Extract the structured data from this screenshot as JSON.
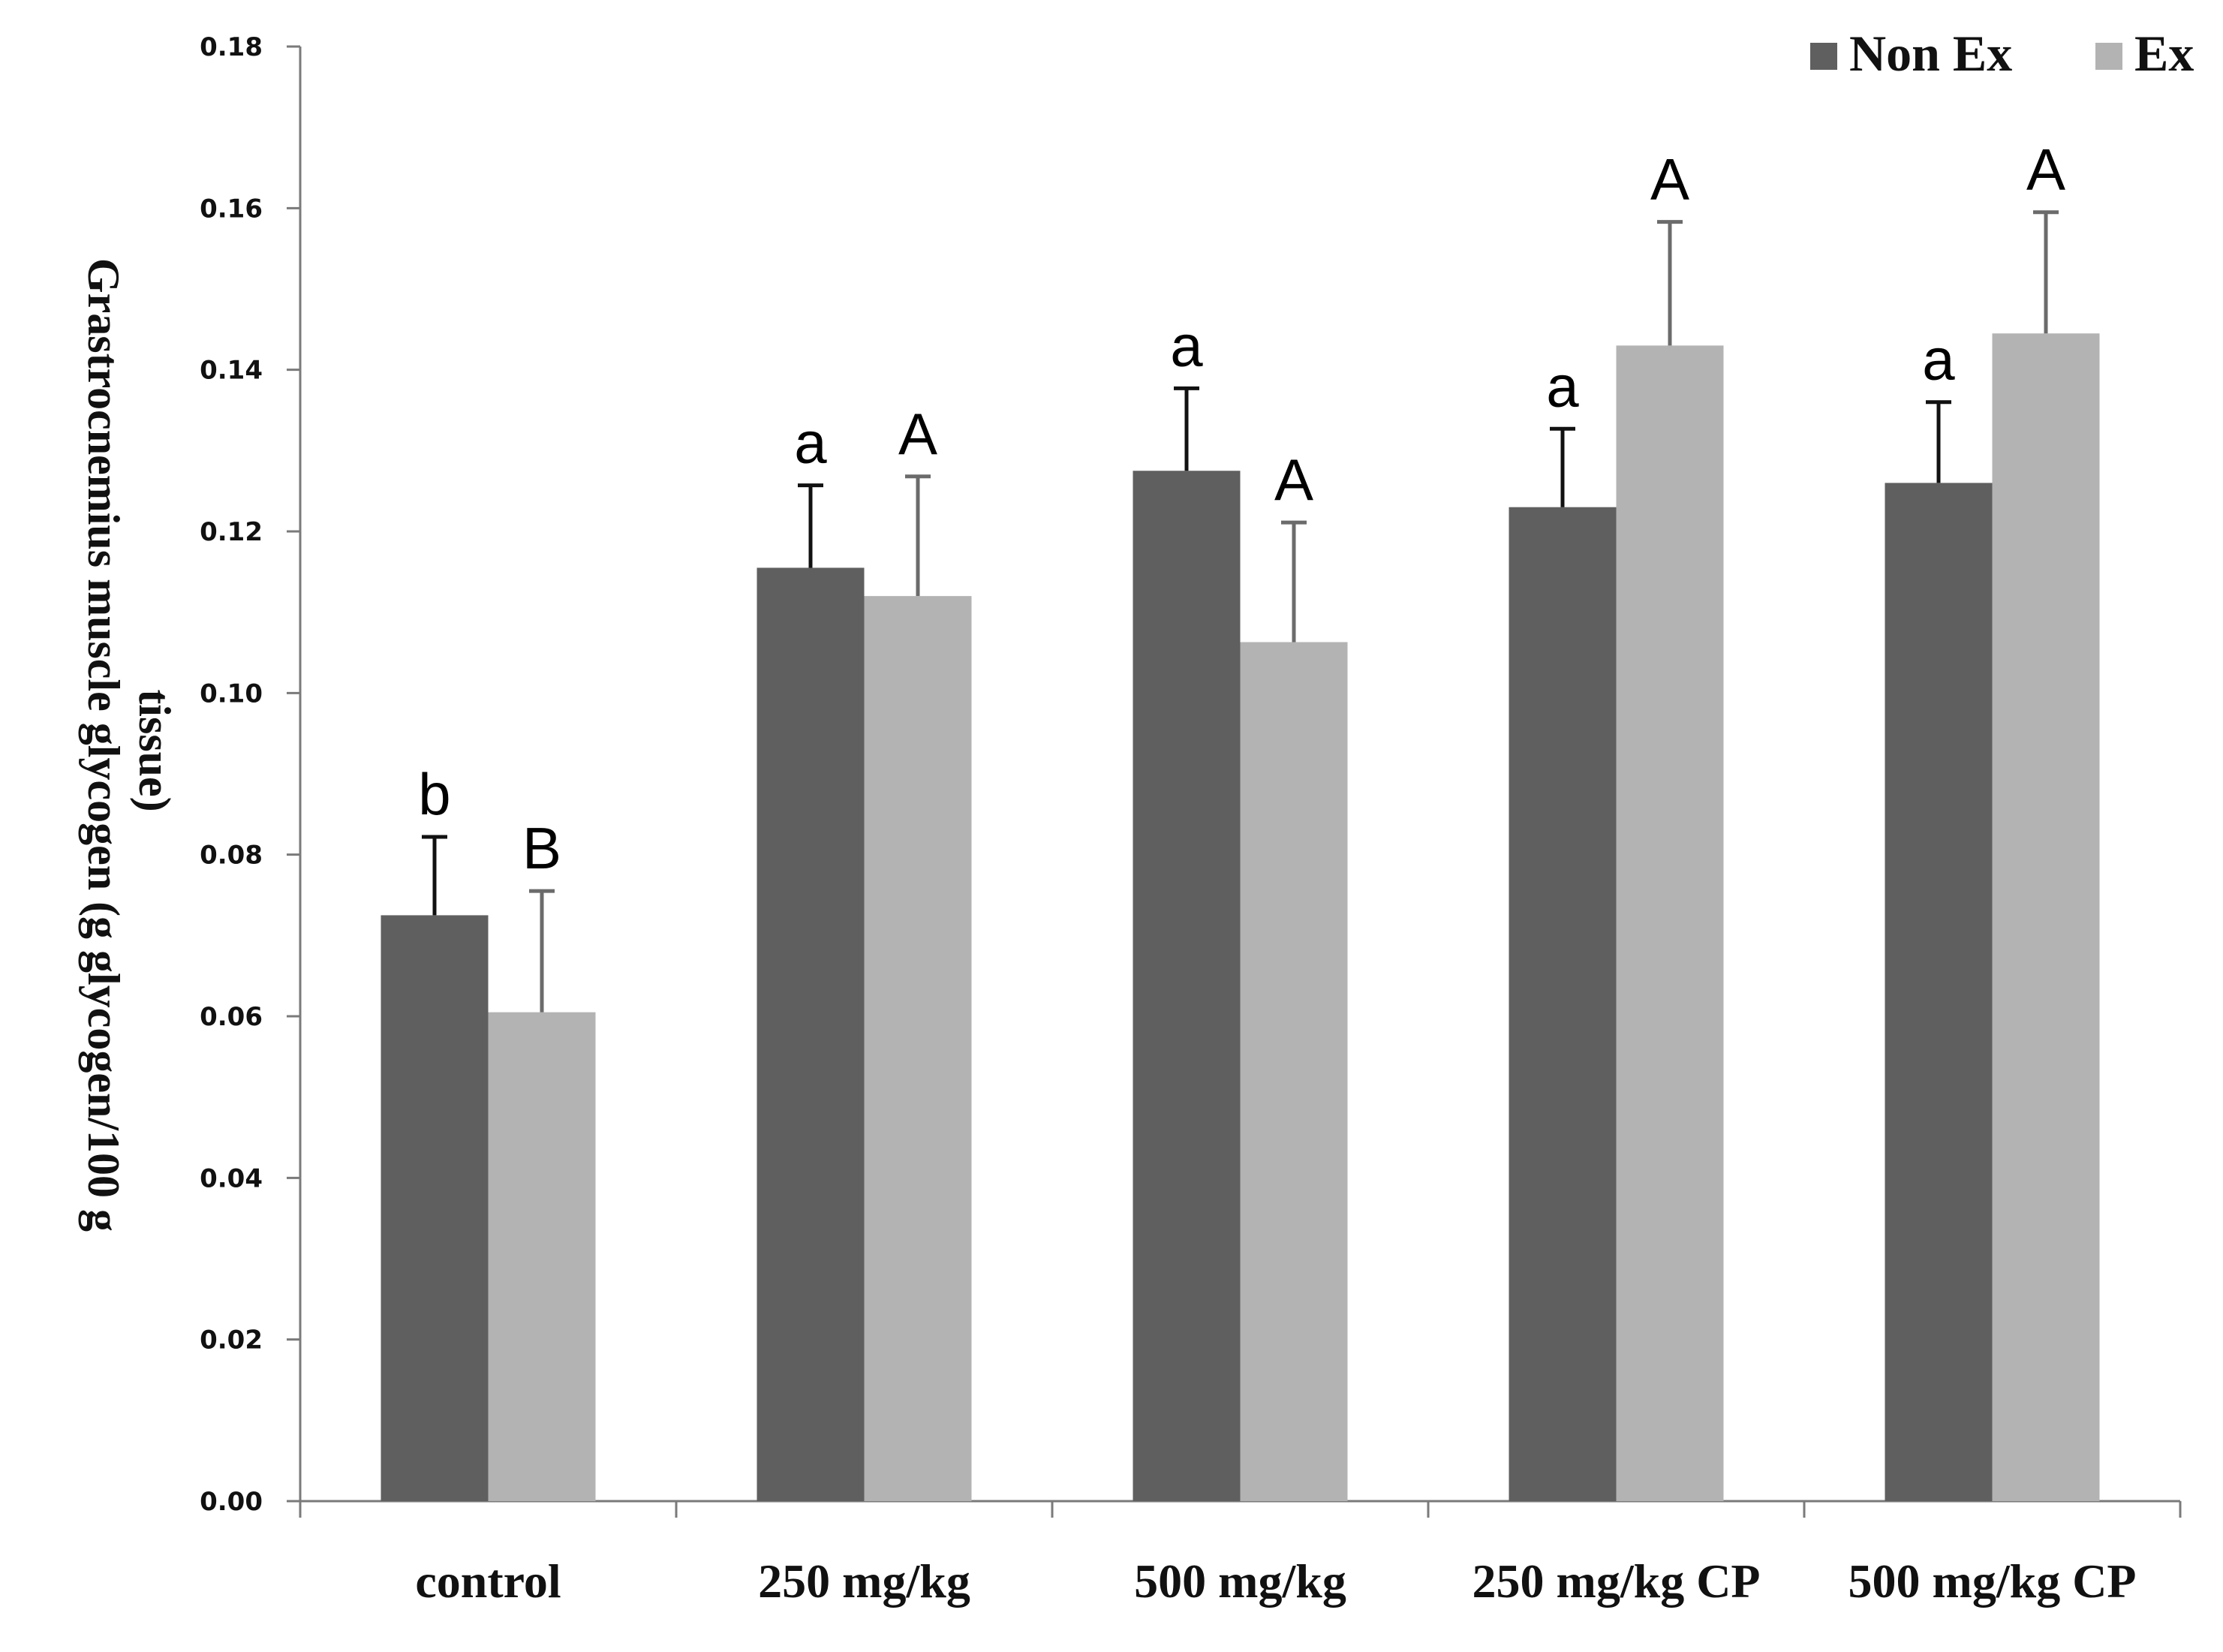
{
  "chart_data": {
    "type": "bar",
    "title": "",
    "xlabel": "",
    "ylabel_lines": [
      "Grastrocnemius muscle glycogen (g glycogen/100 g",
      "tissue)"
    ],
    "ylim": [
      0,
      0.18
    ],
    "yticks": [
      "0.00",
      "0.02",
      "0.04",
      "0.06",
      "0.08",
      "0.10",
      "0.12",
      "0.14",
      "0.16",
      "0.18"
    ],
    "ytick_values": [
      0,
      0.02,
      0.04,
      0.06,
      0.08,
      0.1,
      0.12,
      0.14,
      0.16,
      0.18
    ],
    "categories": [
      "control",
      "250 mg/kg",
      "500 mg/kg",
      "250 mg/kg CP",
      "500 mg/kg CP"
    ],
    "legend_position": "top-right",
    "series": [
      {
        "name": "Non Ex",
        "color": "#5f5f5f",
        "error_color": "#111111",
        "values": [
          0.0725,
          0.1155,
          0.1275,
          0.123,
          0.126
        ],
        "errors": [
          0.0097,
          0.0102,
          0.0102,
          0.0097,
          0.01
        ],
        "labels": [
          "b",
          "a",
          "a",
          "a",
          "a"
        ]
      },
      {
        "name": "Ex",
        "color": "#b3b3b3",
        "error_color": "#6b6b6b",
        "values": [
          0.0605,
          0.112,
          0.1063,
          0.143,
          0.1445
        ],
        "errors": [
          0.015,
          0.0148,
          0.0148,
          0.0153,
          0.015
        ],
        "labels": [
          "B",
          "A",
          "A",
          "A",
          "A"
        ]
      }
    ]
  }
}
